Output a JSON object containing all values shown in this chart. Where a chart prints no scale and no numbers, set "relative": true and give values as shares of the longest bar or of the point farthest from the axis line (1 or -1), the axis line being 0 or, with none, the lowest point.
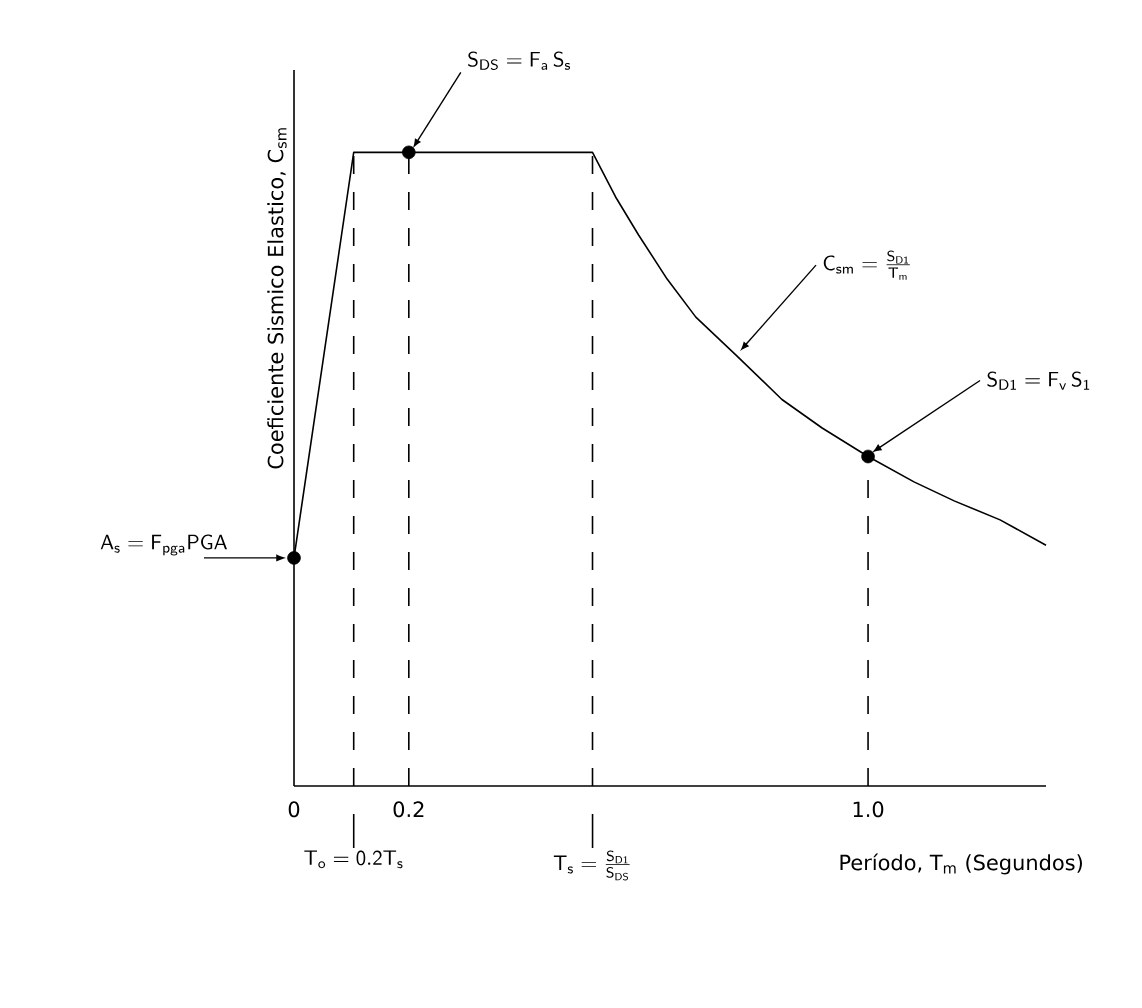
{
  "chart_data": {
    "type": "line",
    "relative": true,
    "xlabel": "Período, T$_{m}$ (Segundos)",
    "ylabel": "Coeficiente Sismico Elastico, C$_{sm}$",
    "xlim": [
      0,
      1.31
    ],
    "xticks": [
      0,
      0.2,
      {
        "value": 1.0,
        "label": "1.0"
      }
    ],
    "series": [
      {
        "type": "line",
        "color": "#000000",
        "marker": "none",
        "x": [
          0,
          0.104,
          0.52,
          0.56,
          0.6,
          0.65,
          0.7,
          0.77,
          0.85,
          0.92,
          1.0,
          1.08,
          1.15,
          1.23,
          1.31
        ],
        "values": [
          0.36,
          1,
          1,
          0.93,
          0.87,
          0.8,
          0.74,
          0.68,
          0.61,
          0.565,
          0.52,
          0.48,
          0.45,
          0.42,
          0.38
        ]
      },
      {
        "type": "scatter",
        "color": "#000000",
        "marker": "circle",
        "x": [
          0,
          0.2,
          1.0
        ],
        "values": [
          0.36,
          1,
          0.52
        ]
      }
    ],
    "ref_lines": [
      {
        "axis": "x",
        "value": 0.104,
        "line_style": "dashed"
      },
      {
        "axis": "x",
        "value": 0.2,
        "line_style": "dashed"
      },
      {
        "axis": "x",
        "value": 0.52,
        "line_style": "dashed"
      },
      {
        "axis": "x",
        "value": 1.0,
        "line_style": "dashed"
      }
    ],
    "annotations": [
      {
        "text": "\\mathsf{A_s = F_{pga}PGA}",
        "x": 0,
        "y": 0.36
      },
      {
        "text": "\\mathsf{S_{DS} = F_a\\,S_s}",
        "x": 0.2,
        "y": 1
      },
      {
        "text": "\\mathsf{C_{sm}}=\\frac{\\mathsf{S_{D1}}}{\\mathsf{T_m}}",
        "x": 0.77,
        "y": 0.68
      },
      {
        "text": "\\mathsf{S_{D1} = F_v\\,S_1}",
        "x": 1.0,
        "y": 0.52
      },
      "\\mathsf{T_o = 0.2T_s}",
      "\\mathsf{T_s}=\\frac{\\mathsf{S_{D1}}}{\\mathsf{S_{DS}}}"
    ]
  }
}
